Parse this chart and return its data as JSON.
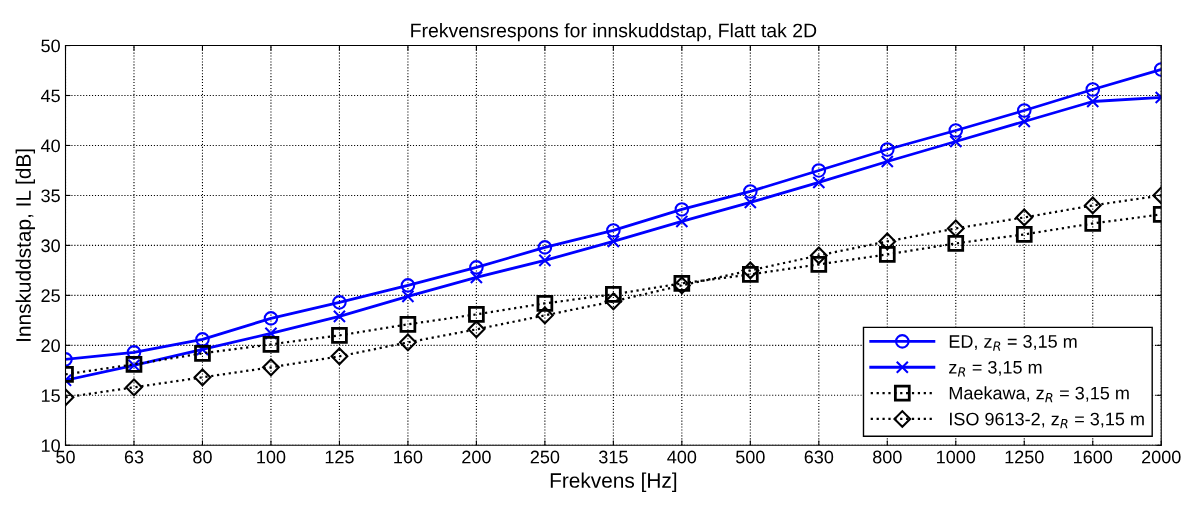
{
  "chart_data": {
    "type": "line",
    "title": "Frekvensrespons for innskuddstap, Flatt tak 2D",
    "xlabel": "Frekvens [Hz]",
    "ylabel": "Innskuddstap, IL [dB]",
    "categories": [
      "50",
      "63",
      "80",
      "100",
      "125",
      "160",
      "200",
      "250",
      "315",
      "400",
      "500",
      "630",
      "800",
      "1000",
      "1250",
      "1600",
      "2000"
    ],
    "series": [
      {
        "name": "ED, z$_{R}$ = 3,15 m",
        "color": "#0000ff",
        "marker": "circle",
        "line_style": "solid",
        "values": [
          18.6,
          19.3,
          20.6,
          22.7,
          24.3,
          26.0,
          27.8,
          29.8,
          31.5,
          33.6,
          35.4,
          37.5,
          39.6,
          41.5,
          43.5,
          45.6,
          47.6
        ]
      },
      {
        "name": "z$_{R}$ = 3,15 m",
        "color": "#0000ff",
        "marker": "cross",
        "line_style": "solid",
        "values": [
          16.5,
          18.0,
          19.6,
          21.2,
          22.9,
          24.9,
          26.8,
          28.5,
          30.4,
          32.4,
          34.3,
          36.3,
          38.4,
          40.4,
          42.4,
          44.4,
          44.8
        ]
      },
      {
        "name": "Maekawa, z$_{R}$ = 3,15 m",
        "color": "#000000",
        "marker": "square",
        "line_style": "dotted",
        "values": [
          17.1,
          18.1,
          19.2,
          20.1,
          21.0,
          22.1,
          23.1,
          24.2,
          25.1,
          26.2,
          27.1,
          28.1,
          29.1,
          30.2,
          31.1,
          32.2,
          33.1
        ]
      },
      {
        "name": "ISO 9613-2, z$_{R}$ = 3,15 m",
        "color": "#000000",
        "marker": "diamond",
        "line_style": "dotted",
        "values": [
          14.8,
          15.8,
          16.8,
          17.8,
          18.9,
          20.3,
          21.6,
          23.0,
          24.4,
          26.0,
          27.5,
          29.0,
          30.4,
          31.7,
          32.8,
          34.0,
          35.0
        ]
      }
    ],
    "ylim": [
      10,
      50
    ],
    "yticks": [
      10,
      15,
      20,
      25,
      30,
      35,
      40,
      45,
      50
    ],
    "grid": true,
    "legend": "lower right"
  }
}
